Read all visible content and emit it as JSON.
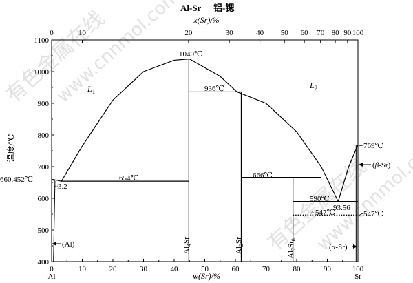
{
  "title": "Al-Sr",
  "subtitle": "铝-锶",
  "top_axis": {
    "label": "x(Sr)/%",
    "ticks": [
      {
        "label": "0",
        "w": 0
      },
      {
        "label": "10",
        "w": 10
      },
      {
        "label": "20",
        "w": 44.7
      },
      {
        "label": "30",
        "w": 58
      },
      {
        "label": "40",
        "w": 68
      },
      {
        "label": "50",
        "w": 76
      },
      {
        "label": "60",
        "w": 82.5
      },
      {
        "label": "70",
        "w": 87.8
      },
      {
        "label": "80",
        "w": 92.6
      },
      {
        "label": "90",
        "w": 96.6
      },
      {
        "label": "100",
        "w": 100
      }
    ]
  },
  "x_axis": {
    "label": "w(Sr)/%",
    "ticks": [
      "0",
      "10",
      "20",
      "30",
      "40",
      "50",
      "60",
      "70",
      "80",
      "90",
      "100"
    ],
    "end_left": "Al",
    "end_right": "Sr",
    "range": [
      0,
      100
    ]
  },
  "y_axis": {
    "label": "温度/℃",
    "ticks": [
      "400",
      "500",
      "600",
      "700",
      "800",
      "900",
      "1000",
      "1100"
    ],
    "range": [
      400,
      1100
    ]
  },
  "labels": {
    "l1": "L",
    "l1_sub": "1",
    "l2": "L",
    "l2_sub": "2",
    "t1040": "1040℃",
    "t936": "936℃",
    "t654": "654℃",
    "t666": "666℃",
    "t590": "590℃",
    "t547_inner": "~547℃",
    "t547_right": "547℃",
    "t769": "769℃",
    "t660": "660.452℃",
    "c32": "~3.2",
    "c9356": "93.56",
    "al_phase": "(Al)",
    "beta_sr_pre": "(",
    "beta_sr_greek": "β",
    "beta_sr_post": "-Sr)",
    "alpha_sr": "(α-Sr)",
    "al4sr": "Al",
    "al4sr_sub": "4",
    "al4sr_tail": "Sr",
    "al2sr": "Al",
    "al2sr_sub": "2",
    "al2sr_tail": "Sr",
    "al7sr8": "Al",
    "al7sr8_sub": "7",
    "al7sr8_mid": "Sr",
    "al7sr8_sub2": "8"
  },
  "watermarks": [
    "有色金属在线",
    "www.cnnmol.com"
  ],
  "chart_data": {
    "type": "phase-diagram",
    "system": "Al-Sr",
    "liquidus": [
      {
        "w": 0,
        "T": 660.452
      },
      {
        "w": 3.2,
        "T": 654
      },
      {
        "w": 10,
        "T": 765
      },
      {
        "w": 20,
        "T": 910
      },
      {
        "w": 30,
        "T": 1000
      },
      {
        "w": 40,
        "T": 1036
      },
      {
        "w": 45,
        "T": 1040
      },
      {
        "w": 55,
        "T": 985
      },
      {
        "w": 60.5,
        "T": 936
      },
      {
        "w": 70,
        "T": 900
      },
      {
        "w": 80,
        "T": 810
      },
      {
        "w": 88,
        "T": 700
      },
      {
        "w": 93.56,
        "T": 590
      },
      {
        "w": 97,
        "T": 700
      },
      {
        "w": 100,
        "T": 769
      }
    ],
    "compounds": [
      {
        "name": "Al4Sr",
        "w": 44.8,
        "T_max": 1040
      },
      {
        "name": "Al2Sr",
        "w": 61.9,
        "T_max": 936
      },
      {
        "name": "Al7Sr8",
        "w": 78.8,
        "T_max": 666
      }
    ],
    "invariants": [
      {
        "T": 654,
        "w_range": [
          3.2,
          44.8
        ]
      },
      {
        "T": 936,
        "w_range": [
          44.8,
          61.9
        ]
      },
      {
        "T": 666,
        "w_range": [
          61.9,
          88
        ]
      },
      {
        "T": 590,
        "w_range": [
          78.8,
          100
        ]
      },
      {
        "T": 547,
        "w_range": [
          78.8,
          100
        ],
        "dotted": true
      }
    ]
  }
}
